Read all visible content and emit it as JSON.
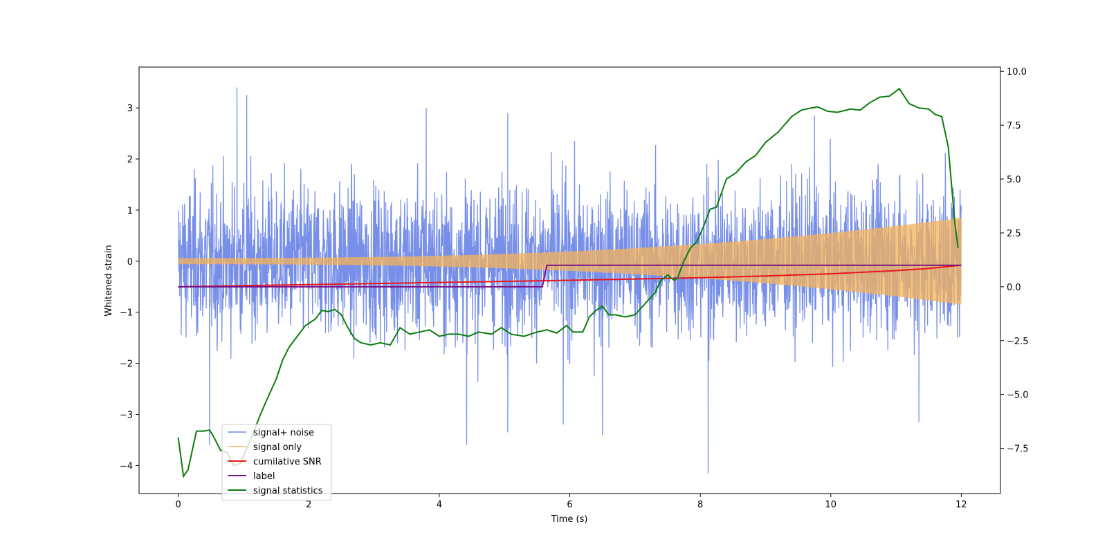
{
  "chart_data": {
    "type": "line",
    "title": "",
    "xlabel": "Time (s)",
    "ylabel": "Whitened strain",
    "y2label": "",
    "xlim": [
      -0.6,
      12.6
    ],
    "ylim": [
      -4.55,
      3.8
    ],
    "y2lim": [
      -9.6,
      10.2
    ],
    "xticks": [
      0,
      2,
      4,
      6,
      8,
      10,
      12
    ],
    "yticks": [
      -4,
      -3,
      -2,
      -1,
      0,
      1,
      2,
      3
    ],
    "y2ticks": [
      -7.5,
      -5.0,
      -2.5,
      0.0,
      2.5,
      5.0,
      7.5,
      10.0
    ],
    "grid": false,
    "legend_position": "lower-left",
    "series": [
      {
        "name": "signal+ noise",
        "axis": "left",
        "color": "#6b86e6",
        "description": "noisy whitened strain, roughly between -2.5 and 2.5 with spikes up to 3.4 and down to -4.2",
        "x_range": [
          0,
          12
        ],
        "typical_amplitude": 1.7,
        "spikes": [
          {
            "x": 0.9,
            "y": 3.4
          },
          {
            "x": 1.05,
            "y": 3.25
          },
          {
            "x": 3.8,
            "y": 3.0
          },
          {
            "x": 5.05,
            "y": 2.9
          },
          {
            "x": 9.75,
            "y": 2.85
          },
          {
            "x": 8.12,
            "y": -4.15
          },
          {
            "x": 4.42,
            "y": -3.6
          },
          {
            "x": 0.48,
            "y": -3.6
          },
          {
            "x": 5.05,
            "y": -3.35
          },
          {
            "x": 6.5,
            "y": -3.4
          },
          {
            "x": 11.35,
            "y": -3.15
          },
          {
            "x": 5.9,
            "y": -3.2
          }
        ]
      },
      {
        "name": "signal only",
        "axis": "left",
        "color": "#f5b35a",
        "description": "chirp signal whose envelope grows from about 0.05 at t=0 to about 0.85 at t=12",
        "x_range": [
          0,
          12
        ],
        "envelope_start": 0.06,
        "envelope_end": 0.85
      },
      {
        "name": "cumilative SNR",
        "axis": "right",
        "color": "#e8151b",
        "x": [
          0,
          2,
          4,
          6,
          8,
          9,
          10,
          11,
          11.5,
          12
        ],
        "y": [
          0.0,
          0.1,
          0.2,
          0.3,
          0.42,
          0.5,
          0.6,
          0.75,
          0.85,
          1.0
        ]
      },
      {
        "name": "label",
        "axis": "right",
        "color": "#7b1283",
        "x": [
          0,
          5.58,
          5.65,
          12
        ],
        "y": [
          0.0,
          0.0,
          1.0,
          1.0
        ]
      },
      {
        "name": "signal statistics",
        "axis": "right",
        "color": "#0a7d0a",
        "x": [
          0,
          0.08,
          0.15,
          0.28,
          0.4,
          0.48,
          0.55,
          0.65,
          0.75,
          0.85,
          0.95,
          1.05,
          1.15,
          1.25,
          1.35,
          1.5,
          1.6,
          1.7,
          1.8,
          1.95,
          2.1,
          2.2,
          2.3,
          2.4,
          2.5,
          2.6,
          2.7,
          2.8,
          2.95,
          3.1,
          3.25,
          3.4,
          3.55,
          3.7,
          3.85,
          4.0,
          4.15,
          4.3,
          4.45,
          4.6,
          4.8,
          4.95,
          5.1,
          5.3,
          5.5,
          5.65,
          5.8,
          5.95,
          6.05,
          6.2,
          6.3,
          6.4,
          6.5,
          6.6,
          6.7,
          6.85,
          7.0,
          7.15,
          7.3,
          7.4,
          7.5,
          7.6,
          7.65,
          7.75,
          7.85,
          7.95,
          8.05,
          8.15,
          8.25,
          8.4,
          8.55,
          8.7,
          8.85,
          9.0,
          9.2,
          9.4,
          9.55,
          9.7,
          9.8,
          9.95,
          10.1,
          10.3,
          10.45,
          10.6,
          10.75,
          10.9,
          11.05,
          11.2,
          11.35,
          11.5,
          11.6,
          11.7,
          11.8,
          11.9,
          11.95
        ],
        "y": [
          -7.0,
          -8.8,
          -8.5,
          -6.7,
          -6.7,
          -6.65,
          -7.0,
          -7.6,
          -7.7,
          -8.3,
          -8.2,
          -7.5,
          -6.8,
          -6.0,
          -5.3,
          -4.3,
          -3.4,
          -2.8,
          -2.4,
          -1.8,
          -1.5,
          -1.1,
          -1.15,
          -1.05,
          -1.3,
          -1.9,
          -2.4,
          -2.6,
          -2.7,
          -2.6,
          -2.7,
          -1.9,
          -2.2,
          -2.1,
          -2.0,
          -2.3,
          -2.2,
          -2.2,
          -2.3,
          -2.1,
          -2.2,
          -1.9,
          -2.2,
          -2.3,
          -2.1,
          -2.0,
          -2.15,
          -1.8,
          -2.1,
          -2.1,
          -1.4,
          -1.1,
          -0.9,
          -1.3,
          -1.3,
          -1.4,
          -1.3,
          -0.8,
          -0.3,
          0.3,
          0.55,
          0.3,
          0.4,
          1.2,
          1.8,
          2.1,
          2.8,
          3.6,
          3.7,
          5.0,
          5.3,
          5.8,
          6.1,
          6.7,
          7.2,
          7.9,
          8.2,
          8.3,
          8.35,
          8.15,
          8.1,
          8.25,
          8.2,
          8.55,
          8.8,
          8.85,
          9.2,
          8.5,
          8.3,
          8.25,
          8.0,
          7.9,
          6.5,
          3.0,
          1.8
        ]
      }
    ]
  }
}
